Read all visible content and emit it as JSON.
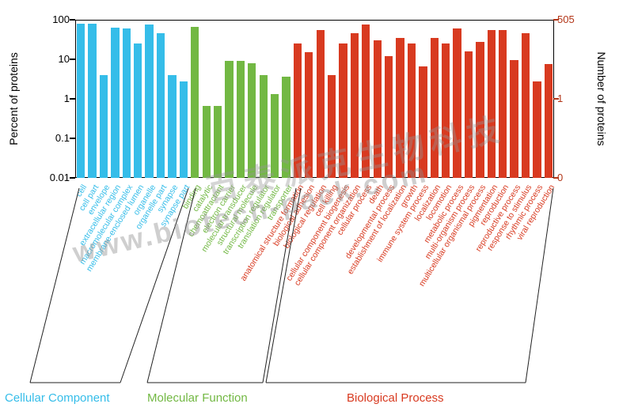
{
  "axes": {
    "left_title": "Percent of proteins",
    "right_title": "Number of proteins",
    "left_ticks": [
      {
        "label": "100",
        "value": 100
      },
      {
        "label": "10",
        "value": 10
      },
      {
        "label": "1",
        "value": 1
      },
      {
        "label": "0.1",
        "value": 0.1
      },
      {
        "label": "0.01",
        "value": 0.01
      }
    ],
    "right_ticks": [
      {
        "label": "505",
        "value": 100
      },
      {
        "label": "1",
        "value": 1
      },
      {
        "label": "0",
        "value": 0.01
      }
    ],
    "right_axis_color": "#b23517"
  },
  "legend": [
    {
      "label": "Cellular Component",
      "color": "#35bde9"
    },
    {
      "label": "Molecular Function",
      "color": "#72b843"
    },
    {
      "label": "Biological Process",
      "color": "#d83a20"
    }
  ],
  "watermarks": [
    {
      "text": "www.biotech-pack.com"
    },
    {
      "text": "百泰派克生物科技"
    }
  ],
  "chart_data": {
    "type": "bar",
    "y_scale": "log",
    "ylim": [
      0.01,
      100
    ],
    "right_axis_max": 505,
    "title": "",
    "xlabel": "",
    "ylabel": "Percent of proteins",
    "ylabel_right": "Number of proteins",
    "grid": false,
    "legend_position": "bottom",
    "groups": [
      {
        "name": "Cellular Component",
        "color": "#35bde9",
        "categories": [
          "cell",
          "cell part",
          "envelope",
          "extracellular region",
          "macromolecular complex",
          "membrane-enclosed lumen",
          "organelle",
          "organelle part",
          "synapse",
          "synapse part"
        ],
        "values": [
          80,
          80,
          4,
          62,
          60,
          25,
          75,
          45,
          4,
          2.8
        ]
      },
      {
        "name": "Molecular Function",
        "color": "#72b843",
        "categories": [
          "binding",
          "catalytic",
          "chemoattractant",
          "electron carrier",
          "molecular transducer",
          "structural molecule",
          "transcription regulator",
          "translation regulator",
          "transporter"
        ],
        "values": [
          65,
          0.65,
          0.65,
          9,
          9,
          8,
          4,
          1.3,
          3.6
        ]
      },
      {
        "name": "Biological Process",
        "color": "#d83a20",
        "categories": [
          "anatomical structure formation",
          "biological adhesion",
          "biological regulation",
          "cell killing",
          "cellular component biogenesis",
          "cellular component organization",
          "cellular process",
          "death",
          "developmental process",
          "establishment of localization",
          "growth",
          "immune system process",
          "localization",
          "locomotion",
          "metabolic process",
          "multi-organism process",
          "multicellular organismal process",
          "pigmentation",
          "reproduction",
          "reproductive process",
          "response to stimulus",
          "rhythmic process",
          "viral reproduction"
        ],
        "values": [
          25,
          15,
          55,
          4,
          25,
          45,
          75,
          30,
          12,
          35,
          25,
          6.5,
          35,
          25,
          60,
          16,
          27,
          55,
          55,
          9.5,
          45,
          2.7,
          7.5
        ]
      }
    ]
  }
}
